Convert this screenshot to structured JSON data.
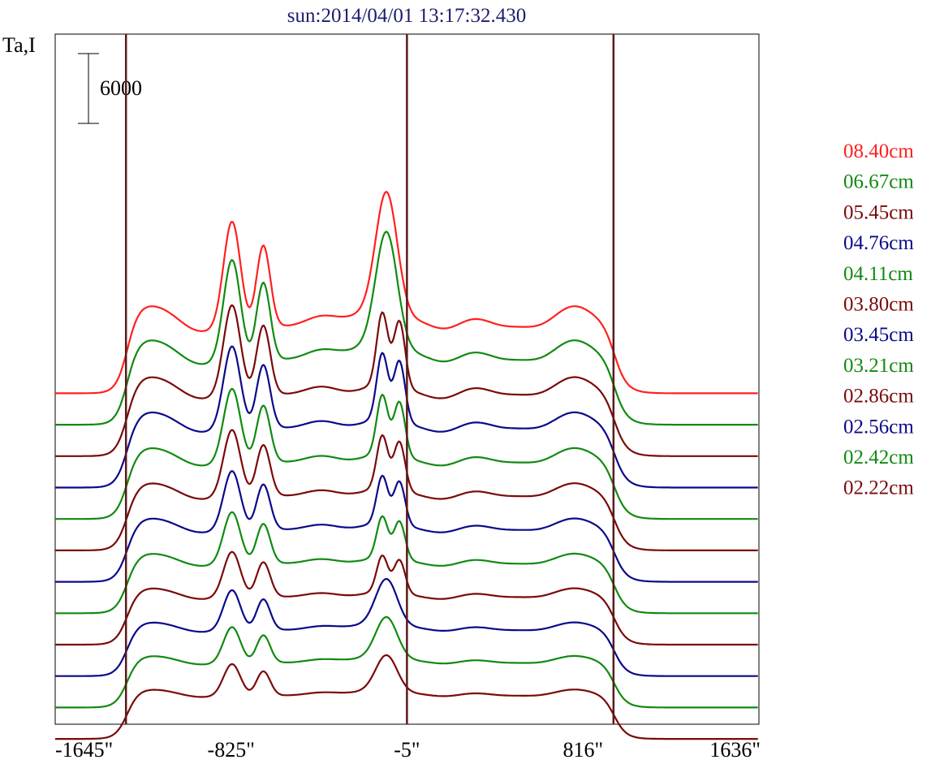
{
  "chart_data": {
    "type": "line",
    "title": "sun:2014/04/01 13:17:32.430",
    "ylabel": "Ta,I",
    "scale_bar_label": "6000",
    "x_tick_labels": [
      "-1645\"",
      "-825\"",
      "-5\"",
      "816\"",
      "1636\""
    ],
    "x_ticks": [
      -1645,
      -825,
      -5,
      816,
      1636
    ],
    "xlim": [
      -1645,
      1636
    ],
    "vertical_lines_at": [
      -1315,
      -5,
      958
    ],
    "colors": {
      "red": "#ff2020",
      "green": "#118a11",
      "maroon": "#7a0a0a",
      "blue": "#0a0a8a",
      "title": "#1c1c6e"
    },
    "series": [
      {
        "name": "08.40cm",
        "color": "#ff2020",
        "offset": 27600,
        "amp": 1.0,
        "doubleCenter": false
      },
      {
        "name": "06.67cm",
        "color": "#118a11",
        "offset": 24900,
        "amp": 0.95,
        "doubleCenter": false
      },
      {
        "name": "05.45cm",
        "color": "#7a0a0a",
        "offset": 22200,
        "amp": 0.85,
        "doubleCenter": true
      },
      {
        "name": "04.76cm",
        "color": "#0a0a8a",
        "offset": 19500,
        "amp": 0.78,
        "doubleCenter": true
      },
      {
        "name": "04.11cm",
        "color": "#118a11",
        "offset": 16800,
        "amp": 0.7,
        "doubleCenter": true
      },
      {
        "name": "03.80cm",
        "color": "#7a0a0a",
        "offset": 14100,
        "amp": 0.63,
        "doubleCenter": true
      },
      {
        "name": "03.45cm",
        "color": "#0a0a8a",
        "offset": 11400,
        "amp": 0.56,
        "doubleCenter": true
      },
      {
        "name": "03.21cm",
        "color": "#118a11",
        "offset": 8700,
        "amp": 0.49,
        "doubleCenter": true
      },
      {
        "name": "02.86cm",
        "color": "#7a0a0a",
        "offset": 6000,
        "amp": 0.43,
        "doubleCenter": true
      },
      {
        "name": "02.56cm",
        "color": "#0a0a8a",
        "offset": 3300,
        "amp": 0.38,
        "doubleCenter": false
      },
      {
        "name": "02.42cm",
        "color": "#118a11",
        "offset": 600,
        "amp": 0.34,
        "doubleCenter": false
      },
      {
        "name": "02.22cm",
        "color": "#7a0a0a",
        "offset": -2100,
        "amp": 0.3,
        "doubleCenter": false
      }
    ]
  }
}
